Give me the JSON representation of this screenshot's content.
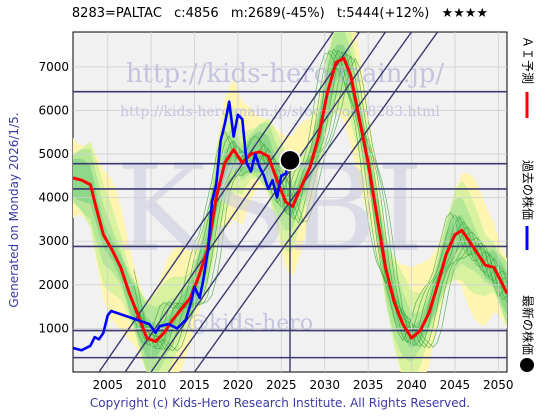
{
  "header": {
    "code_name": "8283=PALTAC",
    "current": "c:4856",
    "min_forecast": "m:2689(-45%)",
    "target": "t:5444(+12%)",
    "rating": "★★★★"
  },
  "generated_text": "Generated on Monday 2026/1/5.",
  "copyright": "Copyright (c) Kids-Hero Research Institute. All Rights Reserved.",
  "watermark": {
    "url": "http://kids-hero.main.jp/",
    "page": "http://kids-hero.main.jp/stock/code8283.html",
    "site": "@kids-hero",
    "big": "KSBI"
  },
  "legend": {
    "ai_label": "ＡＩ予測",
    "ai_color": "#ff0000",
    "past_label": "過去の株価",
    "past_color": "#0000ff",
    "latest_label": "最新の株価",
    "latest_color": "#000000"
  },
  "chart_data": {
    "type": "line",
    "x_range": [
      2001,
      2051
    ],
    "ylim": [
      0,
      7800
    ],
    "xticks": [
      2005,
      2010,
      2015,
      2020,
      2025,
      2030,
      2035,
      2040,
      2045,
      2050
    ],
    "yticks": [
      1000,
      2000,
      3000,
      4000,
      5000,
      6000,
      7000
    ],
    "grid": true,
    "horizontal_levels": [
      6430,
      4780,
      4200,
      2880,
      950,
      330
    ],
    "now_year": 2026.0,
    "series": [
      {
        "name": "ＡＩ予測",
        "color": "#ff0000",
        "points": [
          [
            2001,
            4450
          ],
          [
            2002,
            4400
          ],
          [
            2003,
            4300
          ],
          [
            2003.7,
            3750
          ],
          [
            2004.5,
            3150
          ],
          [
            2005.5,
            2800
          ],
          [
            2006.5,
            2400
          ],
          [
            2007.5,
            1800
          ],
          [
            2008.5,
            1300
          ],
          [
            2009.5,
            780
          ],
          [
            2010.5,
            700
          ],
          [
            2011.5,
            900
          ],
          [
            2012.5,
            1200
          ],
          [
            2013.5,
            1450
          ],
          [
            2014.5,
            1700
          ],
          [
            2015.5,
            2200
          ],
          [
            2016.5,
            2800
          ],
          [
            2017.5,
            4000
          ],
          [
            2018.5,
            4800
          ],
          [
            2019.5,
            5100
          ],
          [
            2020.5,
            4800
          ],
          [
            2021.5,
            5000
          ],
          [
            2022.5,
            5050
          ],
          [
            2023.5,
            4950
          ],
          [
            2024.5,
            4400
          ],
          [
            2025.5,
            3900
          ],
          [
            2026.3,
            3800
          ],
          [
            2027.3,
            4250
          ],
          [
            2028.3,
            4700
          ],
          [
            2029.3,
            5400
          ],
          [
            2030.3,
            6400
          ],
          [
            2031.3,
            7100
          ],
          [
            2032.2,
            7200
          ],
          [
            2033,
            6800
          ],
          [
            2034,
            5800
          ],
          [
            2035,
            4800
          ],
          [
            2036,
            3600
          ],
          [
            2037,
            2400
          ],
          [
            2038,
            1600
          ],
          [
            2039,
            1100
          ],
          [
            2040,
            780
          ],
          [
            2041,
            950
          ],
          [
            2042,
            1350
          ],
          [
            2043,
            2000
          ],
          [
            2044,
            2700
          ],
          [
            2045,
            3150
          ],
          [
            2045.8,
            3250
          ],
          [
            2046.5,
            3050
          ],
          [
            2047.5,
            2750
          ],
          [
            2048.5,
            2450
          ],
          [
            2049.5,
            2400
          ],
          [
            2050.5,
            2000
          ],
          [
            2051,
            1800
          ]
        ]
      },
      {
        "name": "過去の株価",
        "color": "#0000ff",
        "points": [
          [
            2001,
            550
          ],
          [
            2002,
            500
          ],
          [
            2003,
            600
          ],
          [
            2003.5,
            800
          ],
          [
            2004,
            750
          ],
          [
            2004.5,
            900
          ],
          [
            2005,
            1300
          ],
          [
            2005.4,
            1400
          ],
          [
            2009.8,
            1100
          ],
          [
            2010.5,
            900
          ],
          [
            2011,
            1050
          ],
          [
            2012,
            1100
          ],
          [
            2013,
            1000
          ],
          [
            2014,
            1200
          ],
          [
            2014.6,
            1600
          ],
          [
            2015,
            1950
          ],
          [
            2015.6,
            1700
          ],
          [
            2016,
            2100
          ],
          [
            2016.6,
            2850
          ],
          [
            2017,
            3900
          ],
          [
            2017.5,
            4300
          ],
          [
            2018,
            5300
          ],
          [
            2018.5,
            5700
          ],
          [
            2019,
            6200
          ],
          [
            2019.5,
            5400
          ],
          [
            2020,
            5900
          ],
          [
            2020.5,
            5800
          ],
          [
            2021,
            4800
          ],
          [
            2021.5,
            4600
          ],
          [
            2022,
            5000
          ],
          [
            2022.5,
            4700
          ],
          [
            2023,
            4500
          ],
          [
            2023.5,
            4200
          ],
          [
            2024,
            4400
          ],
          [
            2024.5,
            4000
          ],
          [
            2025,
            4500
          ],
          [
            2025.5,
            4550
          ],
          [
            2026,
            4856
          ]
        ]
      }
    ],
    "latest": {
      "year": 2026.0,
      "value": 4856,
      "label": "最新の株価"
    }
  }
}
